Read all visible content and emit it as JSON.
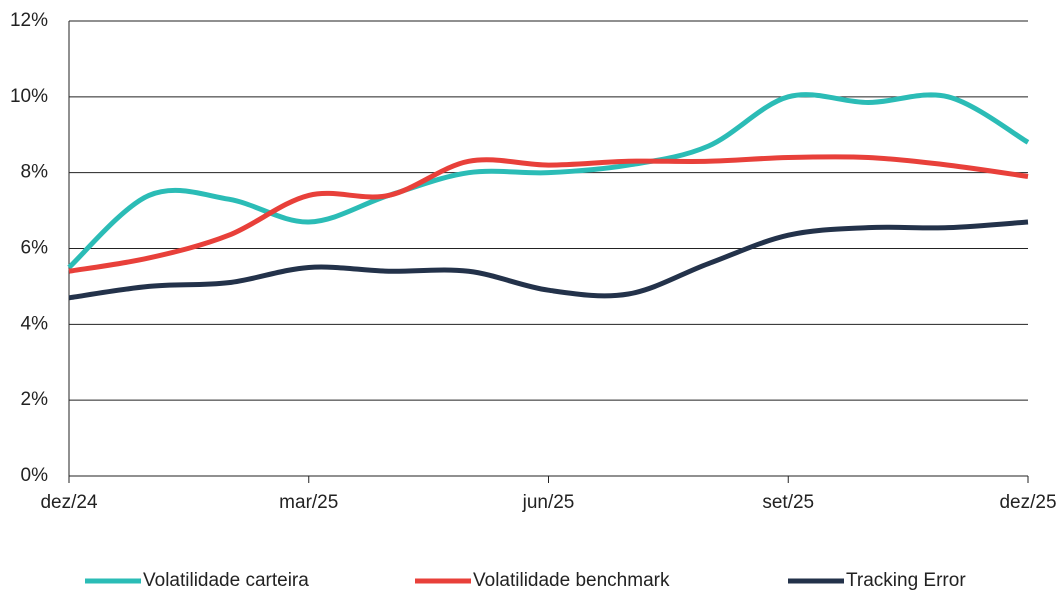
{
  "chart_data": {
    "type": "line",
    "categories": [
      "dez/24",
      null,
      null,
      "mar/25",
      null,
      null,
      "jun/25",
      null,
      null,
      "set/25",
      null,
      null,
      "dez/25"
    ],
    "series": [
      {
        "name": "Volatilidade carteira",
        "color": "#2bbcb6",
        "values": [
          5.5,
          7.4,
          7.3,
          6.7,
          7.4,
          8.0,
          8.0,
          8.2,
          8.7,
          10.0,
          9.85,
          10.0,
          8.8
        ]
      },
      {
        "name": "Volatilidade benchmark",
        "color": "#e8403a",
        "values": [
          5.4,
          5.75,
          6.35,
          7.4,
          7.4,
          8.3,
          8.2,
          8.3,
          8.3,
          8.4,
          8.4,
          8.2,
          7.9
        ]
      },
      {
        "name": "Tracking Error",
        "color": "#23324a",
        "values": [
          4.7,
          5.0,
          5.1,
          5.5,
          5.4,
          5.4,
          4.9,
          4.8,
          5.6,
          6.35,
          6.55,
          6.55,
          6.7
        ]
      }
    ],
    "ylim": [
      0,
      12
    ],
    "yticks": [
      {
        "value": 0,
        "label": "0%"
      },
      {
        "value": 2,
        "label": "2%"
      },
      {
        "value": 4,
        "label": "4%"
      },
      {
        "value": 6,
        "label": "6%"
      },
      {
        "value": 8,
        "label": "8%"
      },
      {
        "value": 10,
        "label": "10%"
      },
      {
        "value": 12,
        "label": "12%"
      }
    ],
    "grid": true,
    "legend": "bottom"
  }
}
